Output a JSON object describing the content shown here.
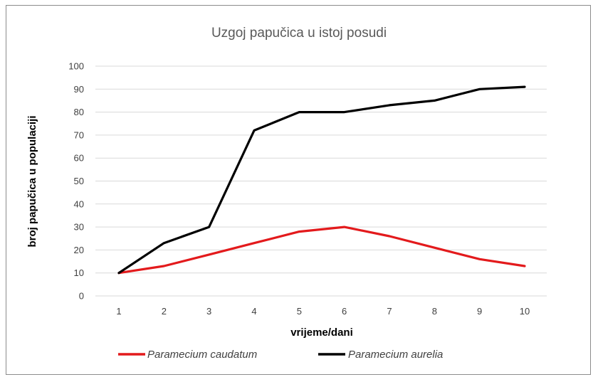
{
  "chart_data": {
    "type": "line",
    "title": "Uzgoj papučica u istoj posudi",
    "xlabel": "vrijeme/dani",
    "ylabel": "broj papučica u populaciji",
    "x": [
      1,
      2,
      3,
      4,
      5,
      6,
      7,
      8,
      9,
      10
    ],
    "ylim": [
      0,
      100
    ],
    "yticks": [
      0,
      10,
      20,
      30,
      40,
      50,
      60,
      70,
      80,
      90,
      100
    ],
    "grid": true,
    "legend_position": "bottom",
    "series": [
      {
        "name": "Paramecium caudatum",
        "color": "#e31a1c",
        "values": [
          10,
          13,
          18,
          23,
          28,
          30,
          26,
          21,
          16,
          13
        ]
      },
      {
        "name": "Paramecium aurelia",
        "color": "#000000",
        "values": [
          10,
          23,
          30,
          72,
          80,
          80,
          83,
          85,
          90,
          91
        ]
      }
    ]
  }
}
